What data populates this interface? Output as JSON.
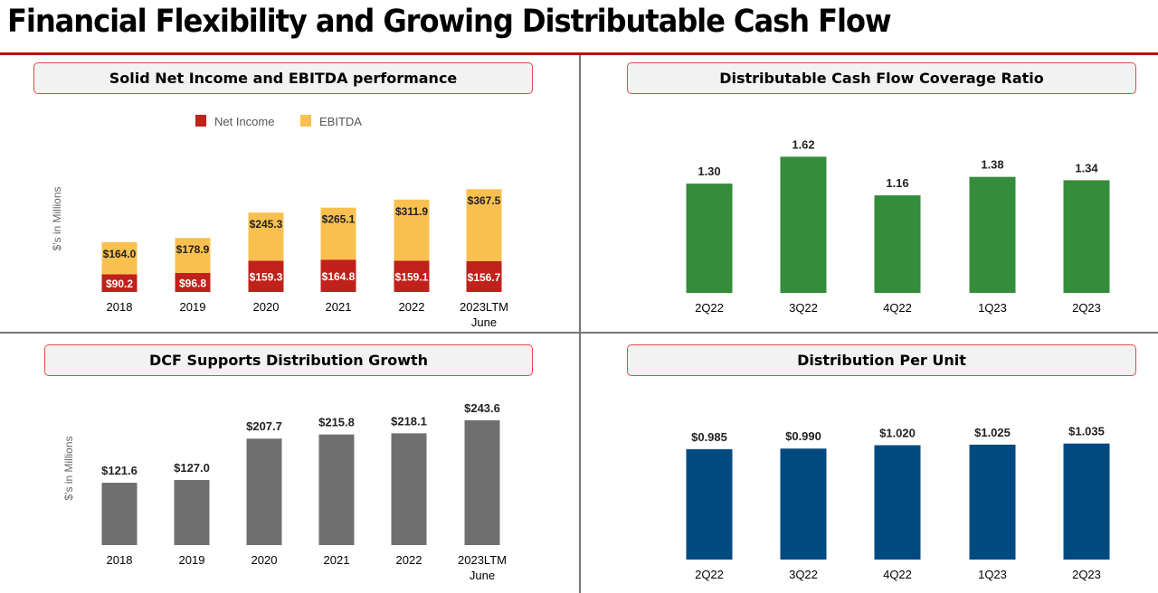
{
  "title": "Financial Flexibility and Growing Distributable Cash Flow",
  "colors": {
    "accent": "#c00000",
    "net_income": "#c0211a",
    "ebitda": "#f9c04f",
    "coverage": "#358c3a",
    "dcf": "#6f6f6f",
    "distribution": "#004a80",
    "panel_border": "#e8474b"
  },
  "chart_data": [
    {
      "type": "bar",
      "stacked": true,
      "title": "Solid Net Income and EBITDA performance",
      "ylabel": "$'s in Millions",
      "legend_position": "top",
      "categories": [
        "2018",
        "2019",
        "2020",
        "2021",
        "2022",
        "2023LTM June"
      ],
      "series": [
        {
          "name": "Net Income",
          "values": [
            90.2,
            96.8,
            159.3,
            164.8,
            159.1,
            156.7
          ],
          "labels": [
            "$90.2",
            "$96.8",
            "$159.3",
            "$164.8",
            "$159.1",
            "$156.7"
          ]
        },
        {
          "name": "EBITDA",
          "values": [
            164.0,
            178.9,
            245.3,
            265.1,
            311.9,
            367.5
          ],
          "labels": [
            "$164.0",
            "$178.9",
            "$245.3",
            "$265.1",
            "$311.9",
            "$367.5"
          ]
        }
      ]
    },
    {
      "type": "bar",
      "title": "Distributable Cash Flow Coverage Ratio",
      "categories": [
        "2Q22",
        "3Q22",
        "4Q22",
        "1Q23",
        "2Q23"
      ],
      "values": [
        1.3,
        1.62,
        1.16,
        1.38,
        1.34
      ],
      "labels": [
        "1.30",
        "1.62",
        "1.16",
        "1.38",
        "1.34"
      ]
    },
    {
      "type": "bar",
      "title": "DCF Supports Distribution Growth",
      "ylabel": "$'s in Millions",
      "categories": [
        "2018",
        "2019",
        "2020",
        "2021",
        "2022",
        "2023LTM June"
      ],
      "values": [
        121.6,
        127.0,
        207.7,
        215.8,
        218.1,
        243.6
      ],
      "labels": [
        "$121.6",
        "$127.0",
        "$207.7",
        "$215.8",
        "$218.1",
        "$243.6"
      ]
    },
    {
      "type": "bar",
      "title": "Distribution Per Unit",
      "categories": [
        "2Q22",
        "3Q22",
        "4Q22",
        "1Q23",
        "2Q23"
      ],
      "values": [
        0.985,
        0.99,
        1.02,
        1.025,
        1.035
      ],
      "labels": [
        "$0.985",
        "$0.990",
        "$1.020",
        "$1.025",
        "$1.035"
      ]
    }
  ]
}
